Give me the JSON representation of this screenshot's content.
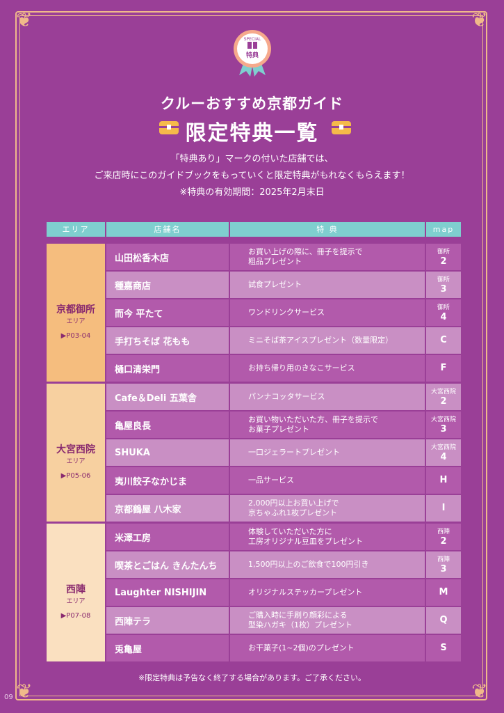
{
  "badge": {
    "top": "SPECIAL",
    "label": "特典"
  },
  "subtitle": "クルーおすすめ京都ガイド",
  "title": "限定特典一覧",
  "intro": [
    "「特典あり」マークの付いた店舗では、",
    "ご来店時にこのガイドブックをもっていくと限定特典がもれなくもらえます！",
    "※特典の有効期間：2025年2月末日"
  ],
  "headers": {
    "area": "エリア",
    "shop": "店舗名",
    "benefit": "特 典",
    "map": "map"
  },
  "areas": [
    {
      "name": "京都御所",
      "suffix": "エリア",
      "pages": "▶P03-04",
      "color": "#f5bd7e"
    },
    {
      "name": "大宮西院",
      "suffix": "エリア",
      "pages": "▶P05-06",
      "color": "#f7d0a0"
    },
    {
      "name": "西陣",
      "suffix": "エリア",
      "pages": "▶P07-08",
      "color": "#fae0c0"
    }
  ],
  "rows": [
    {
      "shop": "山田松香木店",
      "benefit": [
        "お買い上げの際に、冊子を提示で",
        "粗品プレゼント"
      ],
      "map_small": "御所",
      "map": "2"
    },
    {
      "shop": "種嘉商店",
      "benefit": [
        "試食プレゼント"
      ],
      "map_small": "御所",
      "map": "3"
    },
    {
      "shop": "而今 平たて",
      "benefit": [
        "ワンドリンクサービス"
      ],
      "map_small": "御所",
      "map": "4"
    },
    {
      "shop": "手打ちそば 花もも",
      "benefit": [
        "ミニそば茶アイスプレゼント（数量限定）"
      ],
      "map_small": "",
      "map": "C"
    },
    {
      "shop": "樋口清栄門",
      "benefit": [
        "お持ち帰り用のきなこサービス"
      ],
      "map_small": "",
      "map": "F"
    },
    {
      "shop": "Cafe＆Deli 五葉舎",
      "benefit": [
        "パンナコッタサービス"
      ],
      "map_small": "大宮西院",
      "map": "2"
    },
    {
      "shop": "亀屋良長",
      "benefit": [
        "お買い物いただいた方、冊子を提示で",
        "お菓子プレゼント"
      ],
      "map_small": "大宮西院",
      "map": "3"
    },
    {
      "shop": "SHUKA",
      "benefit": [
        "一口ジェラートプレゼント"
      ],
      "map_small": "大宮西院",
      "map": "4"
    },
    {
      "shop": "夷川餃子なかじま",
      "benefit": [
        "一品サービス"
      ],
      "map_small": "",
      "map": "H"
    },
    {
      "shop": "京都鶴屋 八木家",
      "benefit": [
        "2,000円以上お買い上げで",
        "京ちゃふれ1枚プレゼント"
      ],
      "map_small": "",
      "map": "I"
    },
    {
      "shop": "米澤工房",
      "benefit": [
        "体験していただいた方に",
        "工房オリジナル豆皿をプレゼント"
      ],
      "map_small": "西陣",
      "map": "2"
    },
    {
      "shop": "喫茶とごはん きんたんち",
      "benefit": [
        "1,500円以上のご飲食で100円引き"
      ],
      "map_small": "西陣",
      "map": "3"
    },
    {
      "shop": "Laughter NISHIJIN",
      "benefit": [
        "オリジナルステッカープレゼント"
      ],
      "map_small": "",
      "map": "M"
    },
    {
      "shop": "西陣テラ",
      "benefit": [
        "ご購入時に手刷り顔彩による",
        "型染ハガキ（1枚）プレゼント"
      ],
      "map_small": "",
      "map": "Q"
    },
    {
      "shop": "兎亀屋",
      "benefit": [
        "お干菓子(1~2個)のプレゼント"
      ],
      "map_small": "",
      "map": "S"
    }
  ],
  "note": "※限定特典は予告なく終了する場合があります。ご了承ください。",
  "page_number": "09"
}
